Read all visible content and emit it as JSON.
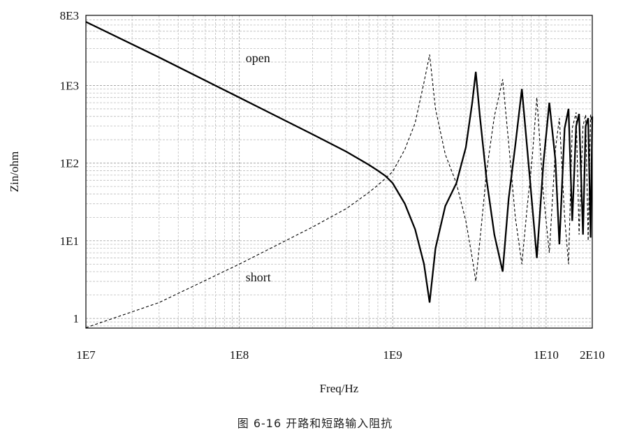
{
  "chart_data": {
    "type": "line",
    "title": "",
    "xlabel": "Freq/Hz",
    "ylabel": "Zin/ohm",
    "x_scale": "log",
    "y_scale": "log",
    "xlim": [
      10000000.0,
      20000000000.0
    ],
    "ylim": [
      0.75,
      8000
    ],
    "x_ticks": [
      {
        "value": 10000000.0,
        "label": "1E7"
      },
      {
        "value": 100000000.0,
        "label": "1E8"
      },
      {
        "value": 1000000000.0,
        "label": "1E9"
      },
      {
        "value": 10000000000.0,
        "label": "1E10"
      },
      {
        "value": 20000000000.0,
        "label": "2E10"
      }
    ],
    "y_ticks": [
      {
        "value": 1,
        "label": "1"
      },
      {
        "value": 10,
        "label": "1E1"
      },
      {
        "value": 100,
        "label": "1E2"
      },
      {
        "value": 1000,
        "label": "1E3"
      },
      {
        "value": 8000,
        "label": "8E3"
      }
    ],
    "grid": true,
    "legend": "none",
    "annotations": [
      {
        "text": "open",
        "x": 110000000.0,
        "y": 2000
      },
      {
        "text": "short",
        "x": 110000000.0,
        "y": 3
      }
    ],
    "series": [
      {
        "name": "open",
        "style": "solid",
        "color": "#000000",
        "x": [
          10000000.0,
          30000000.0,
          100000000.0,
          300000000.0,
          500000000.0,
          700000000.0,
          800000000.0,
          900000000.0,
          1000000000.0,
          1200000000.0,
          1400000000.0,
          1600000000.0,
          1740000000.0,
          1900000000.0,
          2200000000.0,
          2600000000.0,
          3000000000.0,
          3300000000.0,
          3480000000.0,
          3700000000.0,
          4100000000.0,
          4600000000.0,
          5210000000.0,
          5700000000.0,
          6300000000.0,
          6950000000.0,
          7500000000.0,
          8100000000.0,
          8700000000.0,
          9600000000.0,
          10500000000.0,
          11500000000.0,
          12200000000.0,
          13200000000.0,
          14000000000.0,
          14800000000.0,
          15700000000.0,
          16400000000.0,
          17400000000.0,
          18100000000.0,
          18800000000.0,
          19500000000.0,
          20000000000.0
        ],
        "y": [
          6600,
          2300,
          700,
          235,
          140,
          95,
          80,
          68,
          55,
          30,
          14,
          5,
          1.6,
          8,
          28,
          55,
          160,
          600,
          1500,
          400,
          60,
          12,
          4,
          35,
          170,
          900,
          170,
          30,
          6,
          100,
          600,
          110,
          9,
          280,
          500,
          18,
          300,
          430,
          12,
          300,
          380,
          11,
          400
        ]
      },
      {
        "name": "short",
        "style": "dashed",
        "color": "#000000",
        "x": [
          10000000.0,
          30000000.0,
          100000000.0,
          300000000.0,
          500000000.0,
          700000000.0,
          800000000.0,
          900000000.0,
          1000000000.0,
          1200000000.0,
          1400000000.0,
          1600000000.0,
          1740000000.0,
          1900000000.0,
          2200000000.0,
          2600000000.0,
          3000000000.0,
          3300000000.0,
          3480000000.0,
          3700000000.0,
          4100000000.0,
          4600000000.0,
          5210000000.0,
          5700000000.0,
          6300000000.0,
          6950000000.0,
          7500000000.0,
          8100000000.0,
          8700000000.0,
          9600000000.0,
          10500000000.0,
          11500000000.0,
          12200000000.0,
          13200000000.0,
          14000000000.0,
          14800000000.0,
          15700000000.0,
          16400000000.0,
          17400000000.0,
          18100000000.0,
          18800000000.0,
          19500000000.0,
          20000000000.0
        ],
        "y": [
          0.76,
          1.6,
          5.0,
          15,
          26,
          42,
          52,
          64,
          78,
          150,
          330,
          1100,
          2500,
          500,
          130,
          55,
          18,
          6,
          3,
          10,
          80,
          400,
          1200,
          180,
          20,
          5,
          25,
          110,
          700,
          40,
          7,
          150,
          380,
          20,
          5,
          280,
          450,
          12,
          300,
          420,
          10,
          420,
          300
        ]
      }
    ]
  },
  "caption": "图 6-16   开路和短路输入阻抗"
}
